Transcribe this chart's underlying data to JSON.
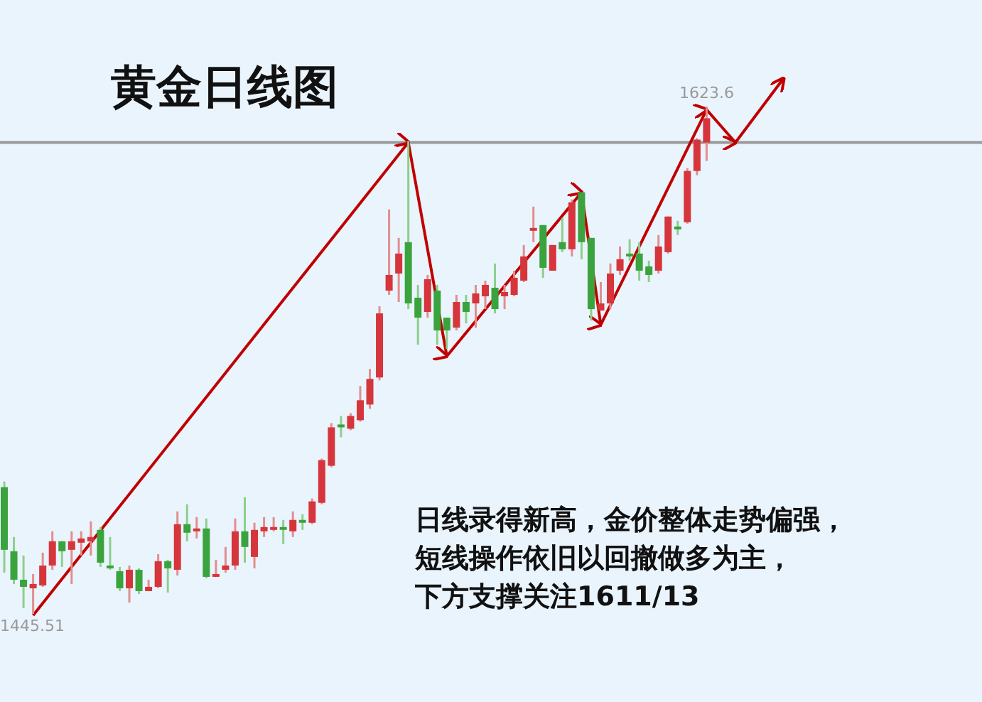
{
  "chart_data": {
    "type": "candlestick",
    "title": "黄金日线图",
    "categories": [
      null,
      null,
      null,
      null,
      null,
      null,
      null,
      null,
      null,
      null,
      null,
      null,
      null,
      null,
      null,
      null,
      null,
      null,
      null,
      null,
      null,
      null,
      null,
      null,
      null,
      null,
      null,
      null,
      null,
      null,
      null,
      null,
      null,
      null,
      null,
      null,
      null,
      null,
      null,
      null,
      null,
      null,
      null,
      null,
      null,
      null,
      null,
      null,
      null,
      null,
      null,
      null,
      null,
      null,
      null,
      null,
      null,
      null,
      null,
      null,
      null,
      null,
      null,
      null,
      null,
      null,
      null,
      null,
      null,
      null,
      null,
      null,
      null,
      null,
      null,
      null,
      null,
      null,
      null,
      null,
      null,
      null
    ],
    "ohlc": [
      [
        1490,
        1492,
        1460,
        1468
      ],
      [
        1467.5,
        1472.5,
        1456,
        1457.5
      ],
      [
        1457.5,
        1466,
        1447.5,
        1455
      ],
      [
        1454.5,
        1459.5,
        1445.51,
        1456
      ],
      [
        1455.5,
        1467,
        1455,
        1462.5
      ],
      [
        1462.5,
        1474.5,
        1461,
        1471
      ],
      [
        1471,
        1471,
        1462,
        1467.5
      ],
      [
        1468,
        1474.5,
        1456,
        1471
      ],
      [
        1470.5,
        1474.5,
        1466,
        1472
      ],
      [
        1471,
        1478,
        1466,
        1472.5
      ],
      [
        1475,
        1476,
        1462,
        1463.5
      ],
      [
        1462.5,
        1472.5,
        1461,
        1461.5
      ],
      [
        1460.5,
        1462,
        1453.5,
        1454.5
      ],
      [
        1454.5,
        1462.5,
        1449.5,
        1461
      ],
      [
        1461,
        1461.5,
        1452.5,
        1453.5
      ],
      [
        1453.5,
        1457.5,
        1453.5,
        1455
      ],
      [
        1455,
        1466.5,
        1454.5,
        1464
      ],
      [
        1464,
        1464.5,
        1453,
        1461.5
      ],
      [
        1461,
        1481.5,
        1459,
        1477
      ],
      [
        1477,
        1484,
        1471,
        1474
      ],
      [
        1474.5,
        1479.5,
        1472,
        1475.5
      ],
      [
        1475.5,
        1479,
        1458,
        1458.5
      ],
      [
        1458.5,
        1464.5,
        1458.5,
        1459.5
      ],
      [
        1461,
        1469,
        1460,
        1462.5
      ],
      [
        1462.5,
        1479,
        1461,
        1474.5
      ],
      [
        1474.5,
        1486.5,
        1463.5,
        1469
      ],
      [
        1465.5,
        1477.5,
        1461.5,
        1475
      ],
      [
        1474.5,
        1479.5,
        1472.5,
        1476
      ],
      [
        1475,
        1479.5,
        1474.5,
        1476
      ],
      [
        1476,
        1478.5,
        1470,
        1475
      ],
      [
        1474.5,
        1481.5,
        1472.5,
        1478.5
      ],
      [
        1478.5,
        1480.5,
        1475,
        1477.5
      ],
      [
        1477.5,
        1486,
        1477,
        1485
      ],
      [
        1484.5,
        1500,
        1484,
        1499.5
      ],
      [
        1497.5,
        1512.5,
        1497,
        1511
      ],
      [
        1512,
        1515,
        1507.5,
        1511
      ],
      [
        1510.5,
        1516,
        1510,
        1515
      ],
      [
        1513.5,
        1525.5,
        1513,
        1520.5
      ],
      [
        1519,
        1531.5,
        1517.5,
        1528
      ],
      [
        1528.5,
        1553.5,
        1527.5,
        1551
      ],
      [
        1559,
        1587.5,
        1557.5,
        1564.5
      ],
      [
        1565,
        1577.5,
        1555,
        1572
      ],
      [
        1576,
        1611.5,
        1552.5,
        1554.5
      ],
      [
        1556.5,
        1561,
        1540,
        1549.5
      ],
      [
        1551.5,
        1564.5,
        1549.5,
        1563
      ],
      [
        1559,
        1561,
        1540,
        1545
      ],
      [
        1549.5,
        1549.5,
        1538.5,
        1545
      ],
      [
        1546,
        1557.5,
        1545,
        1555
      ],
      [
        1555,
        1557.5,
        1547.5,
        1551.5
      ],
      [
        1554.5,
        1561,
        1546,
        1558
      ],
      [
        1557,
        1562.5,
        1552.5,
        1561
      ],
      [
        1560,
        1568.5,
        1551,
        1552.5
      ],
      [
        1557,
        1561,
        1552.5,
        1558.5
      ],
      [
        1557.5,
        1566,
        1557,
        1563.5
      ],
      [
        1562.5,
        1575,
        1562,
        1571
      ],
      [
        1580,
        1588.5,
        1576,
        1581
      ],
      [
        1582,
        1582,
        1563.5,
        1567
      ],
      [
        1566,
        1575,
        1566,
        1575
      ],
      [
        1576,
        1584.5,
        1572.5,
        1573.5
      ],
      [
        1573.5,
        1591,
        1571,
        1590
      ],
      [
        1593.5,
        1593.5,
        1570,
        1576
      ],
      [
        1577.5,
        1577.5,
        1548.5,
        1552.5
      ],
      [
        1552,
        1562,
        1552,
        1554.5
      ],
      [
        1554.5,
        1568.5,
        1552.5,
        1565
      ],
      [
        1566,
        1574.5,
        1564.5,
        1570
      ],
      [
        1572,
        1577,
        1569.5,
        1571
      ],
      [
        1572,
        1576,
        1562.5,
        1566
      ],
      [
        1567.5,
        1569.5,
        1562,
        1564.5
      ],
      [
        1566,
        1578.5,
        1565,
        1574.5
      ],
      [
        1572.5,
        1585,
        1572,
        1585
      ],
      [
        1581.5,
        1583.5,
        1578.5,
        1580.5
      ],
      [
        1583,
        1602,
        1582.5,
        1601
      ],
      [
        1601,
        1612.5,
        1599.5,
        1612
      ],
      [
        1611,
        1623.6,
        1604.5,
        1619.5
      ],
      null,
      null,
      null,
      null,
      null,
      null,
      null,
      null
    ],
    "series": [
      {
        "type": "line",
        "color": "#c00000",
        "values": [
          null,
          null,
          null,
          1445,
          null,
          null,
          null,
          null,
          null,
          null,
          null,
          null,
          null,
          null,
          null,
          null,
          null,
          null,
          null,
          null,
          null,
          null,
          null,
          null,
          null,
          null,
          null,
          null,
          null,
          null,
          null,
          null,
          null,
          null,
          null,
          null,
          null,
          null,
          null,
          null,
          null,
          null,
          1611,
          null,
          null,
          null,
          1536,
          null,
          null,
          null,
          null,
          null,
          null,
          null,
          null,
          null,
          null,
          null,
          null,
          null,
          1593.5,
          null,
          1547,
          null,
          null,
          null,
          null,
          null,
          null,
          null,
          null,
          null,
          null,
          1622.5,
          null,
          null,
          1611,
          null,
          null,
          null,
          null,
          1633.5
        ]
      }
    ],
    "ref_lines": [
      {
        "axis": "y",
        "value": 1611,
        "color": "#999999"
      }
    ],
    "annotations": [
      {
        "text": "1623.6",
        "y": 1623.6
      },
      {
        "text": "1445.51",
        "y": 1445.51
      },
      "日线录得新高，金价整体走势偏强，",
      "短线操作依旧以回撤做多为主，",
      "下方支撑关注1611/13"
    ]
  }
}
